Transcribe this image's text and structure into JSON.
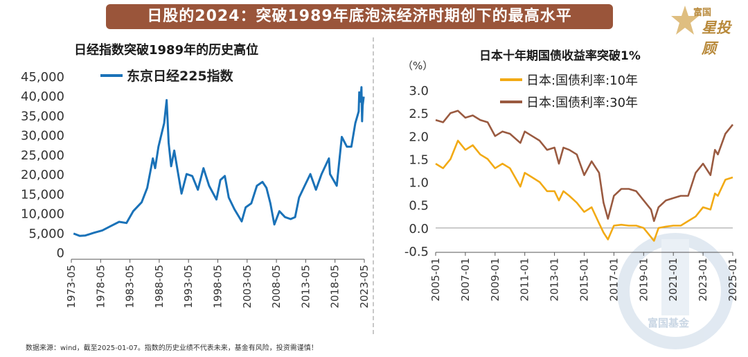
{
  "header": {
    "title": "日股的2024：突破1989年底泡沫经济时期创下的最高水平"
  },
  "logo": {
    "brand": "富国",
    "name": "星投顾"
  },
  "watermark": {
    "text": "富国基金"
  },
  "footnote": "数据来源：wind，截至2025-01-07。指数的历史业绩不代表未来，基金有风险，投资需谨慎！",
  "colors": {
    "title_bg": "#9a553a",
    "nikkei": "#1a72b8",
    "jgb10": "#f2aa14",
    "jgb30": "#9a5a40",
    "logo_gold": "#b8893a"
  },
  "chart_data": [
    {
      "type": "line",
      "title": "日经指数突破1989年的历史高位",
      "ylim": [
        0,
        45000
      ],
      "yticks": [
        "0",
        "5,000",
        "10,000",
        "15,000",
        "20,000",
        "25,000",
        "30,000",
        "35,000",
        "40,000",
        "45,000"
      ],
      "ytick_values": [
        0,
        5000,
        10000,
        15000,
        20000,
        25000,
        30000,
        35000,
        40000,
        45000
      ],
      "xticks": [
        "1973-05",
        "1978-05",
        "1983-05",
        "1988-05",
        "1993-05",
        "1998-05",
        "2003-05",
        "2008-05",
        "2013-05",
        "2018-05",
        "2023-05"
      ],
      "xlim": [
        1973.0,
        2025.1
      ],
      "legend_position": "top-left",
      "series": [
        {
          "name": "东京日经225指数",
          "color": "#1a72b8",
          "x": [
            1973.4,
            1974.5,
            1975.5,
            1977.0,
            1978.5,
            1980.0,
            1981.5,
            1982.8,
            1984.0,
            1985.5,
            1986.5,
            1987.5,
            1987.9,
            1988.5,
            1989.5,
            1989.95,
            1990.3,
            1990.75,
            1991.3,
            1992.0,
            1992.6,
            1993.5,
            1994.5,
            1995.5,
            1996.5,
            1997.5,
            1998.8,
            1999.5,
            2000.3,
            2001.0,
            2002.0,
            2003.3,
            2004.0,
            2005.0,
            2006.0,
            2007.0,
            2007.7,
            2008.4,
            2009.1,
            2010.0,
            2011.0,
            2012.0,
            2012.8,
            2013.5,
            2014.5,
            2015.5,
            2016.5,
            2017.5,
            2018.8,
            2019.0,
            2020.2,
            2021.1,
            2022.0,
            2022.8,
            2023.5,
            2024.1,
            2024.2,
            2024.4,
            2024.6,
            2024.7,
            2024.8,
            2025.0
          ],
          "y": [
            4800,
            4200,
            4300,
            5000,
            5600,
            6700,
            7800,
            7500,
            10500,
            12800,
            16500,
            24000,
            21500,
            27000,
            33000,
            38900,
            28000,
            22000,
            26000,
            20000,
            15000,
            20000,
            19500,
            16000,
            21500,
            17000,
            13500,
            18500,
            19500,
            14000,
            11000,
            7900,
            11500,
            12500,
            17000,
            18000,
            16500,
            12500,
            7100,
            10500,
            9000,
            8500,
            9000,
            14000,
            17000,
            20000,
            16000,
            20000,
            24000,
            20000,
            17000,
            29500,
            27000,
            27000,
            33000,
            36000,
            40900,
            38500,
            42200,
            33500,
            37500,
            39800
          ]
        }
      ]
    },
    {
      "type": "line",
      "title": "日本十年期国债收益率突破1%",
      "ylabel": "（%）",
      "ylim": [
        -0.5,
        3.0
      ],
      "yticks": [
        "-0.5",
        "0.0",
        "0.5",
        "1.0",
        "1.5",
        "2.0",
        "2.5",
        "3.0"
      ],
      "ytick_values": [
        -0.5,
        0.0,
        0.5,
        1.0,
        1.5,
        2.0,
        2.5,
        3.0
      ],
      "xticks": [
        "2005-01",
        "2007-01",
        "2009-01",
        "2011-01",
        "2013-01",
        "2015-01",
        "2017-01",
        "2019-01",
        "2021-01",
        "2023-01",
        "2025-01"
      ],
      "xlim": [
        2005.0,
        2025.0
      ],
      "legend_position": "top-left",
      "series": [
        {
          "name": "日本:国债利率:10年",
          "color": "#f2aa14",
          "x": [
            2005.0,
            2005.5,
            2006.0,
            2006.5,
            2007.0,
            2007.5,
            2008.0,
            2008.5,
            2009.0,
            2009.5,
            2010.0,
            2010.7,
            2011.0,
            2011.5,
            2012.0,
            2012.5,
            2013.0,
            2013.3,
            2013.6,
            2014.0,
            2014.5,
            2015.0,
            2015.5,
            2016.0,
            2016.3,
            2016.6,
            2017.0,
            2017.5,
            2018.0,
            2018.5,
            2019.0,
            2019.5,
            2019.7,
            2020.0,
            2020.5,
            2021.0,
            2021.5,
            2022.0,
            2022.5,
            2023.0,
            2023.5,
            2023.8,
            2024.0,
            2024.5,
            2025.0
          ],
          "y": [
            1.4,
            1.3,
            1.5,
            1.9,
            1.7,
            1.8,
            1.6,
            1.5,
            1.3,
            1.4,
            1.3,
            0.9,
            1.2,
            1.1,
            1.0,
            0.8,
            0.8,
            0.6,
            0.8,
            0.7,
            0.55,
            0.35,
            0.45,
            0.1,
            -0.1,
            -0.25,
            0.05,
            0.07,
            0.05,
            0.05,
            0.0,
            -0.2,
            -0.28,
            0.0,
            0.03,
            0.05,
            0.05,
            0.15,
            0.25,
            0.45,
            0.4,
            0.75,
            0.7,
            1.05,
            1.1
          ]
        },
        {
          "name": "日本:国债利率:30年",
          "color": "#9a5a40",
          "x": [
            2005.0,
            2005.5,
            2006.0,
            2006.5,
            2007.0,
            2007.5,
            2008.0,
            2008.5,
            2009.0,
            2009.5,
            2010.0,
            2010.7,
            2011.0,
            2011.5,
            2012.0,
            2012.5,
            2013.0,
            2013.3,
            2013.6,
            2014.0,
            2014.5,
            2015.0,
            2015.5,
            2016.0,
            2016.3,
            2016.6,
            2017.0,
            2017.5,
            2018.0,
            2018.5,
            2019.0,
            2019.5,
            2019.7,
            2020.0,
            2020.5,
            2021.0,
            2021.5,
            2022.0,
            2022.5,
            2023.0,
            2023.5,
            2023.8,
            2024.0,
            2024.5,
            2025.0
          ],
          "y": [
            2.35,
            2.3,
            2.5,
            2.55,
            2.4,
            2.45,
            2.35,
            2.3,
            2.0,
            2.1,
            2.05,
            1.85,
            2.1,
            2.0,
            1.9,
            1.7,
            1.75,
            1.4,
            1.75,
            1.7,
            1.6,
            1.15,
            1.45,
            1.2,
            0.55,
            0.2,
            0.7,
            0.85,
            0.85,
            0.8,
            0.6,
            0.4,
            0.15,
            0.45,
            0.6,
            0.65,
            0.7,
            0.7,
            1.2,
            1.4,
            1.15,
            1.7,
            1.6,
            2.05,
            2.25
          ]
        }
      ]
    }
  ]
}
